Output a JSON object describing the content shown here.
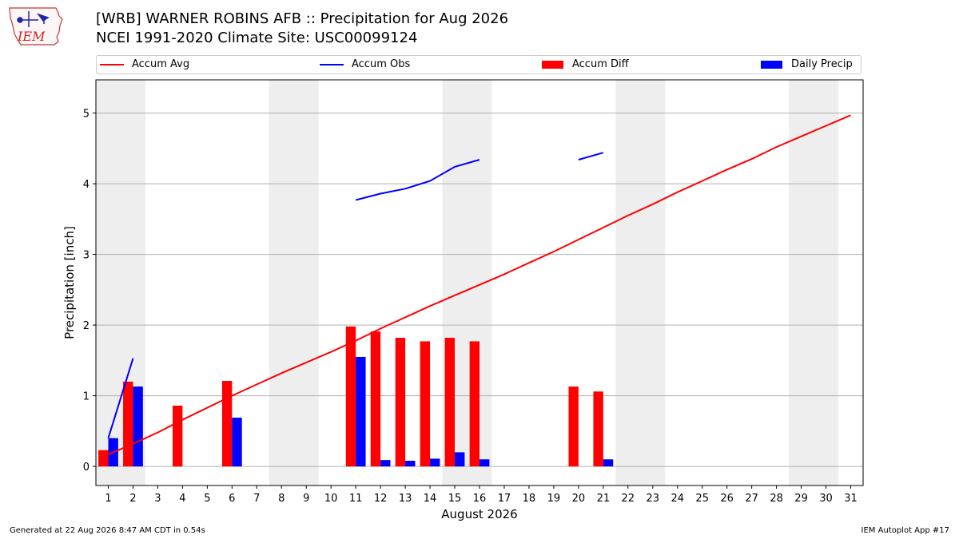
{
  "logo": {
    "text": "IEM"
  },
  "header": {
    "title": "[WRB] WARNER ROBINS AFB :: Precipitation for Aug 2026",
    "subtitle": "NCEI 1991-2020 Climate Site: USC00099124"
  },
  "footer": {
    "left": "Generated at 22 Aug 2026 8:47 AM CDT in 0.54s",
    "right": "IEM Autoplot App #17"
  },
  "colors": {
    "avg": "#ff0000",
    "obs": "#0000ff",
    "diff": "#ff0000",
    "daily": "#0000ff",
    "weekend": "#eeeeee",
    "grid": "#b0b0b0"
  },
  "chart_data": {
    "type": "bar",
    "xlabel": "August 2026",
    "ylabel": "Precipitation [inch]",
    "xlim": [
      0.5,
      31.5
    ],
    "ylim": [
      -0.27,
      5.47
    ],
    "x_ticks": [
      1,
      2,
      3,
      4,
      5,
      6,
      7,
      8,
      9,
      10,
      11,
      12,
      13,
      14,
      15,
      16,
      17,
      18,
      19,
      20,
      21,
      22,
      23,
      24,
      25,
      26,
      27,
      28,
      29,
      30,
      31
    ],
    "x_tick_labels": [
      "1",
      "2",
      "3",
      "4",
      "5",
      "6",
      "7",
      "8",
      "9",
      "10",
      "11",
      "12",
      "13",
      "14",
      "15",
      "16",
      "17",
      "18",
      "19",
      "20",
      "21",
      "22",
      "23",
      "24",
      "25",
      "26",
      "27",
      "28",
      "29",
      "30",
      "31"
    ],
    "y_ticks": [
      0,
      1,
      2,
      3,
      4,
      5
    ],
    "y_tick_labels": [
      "0",
      "1",
      "2",
      "3",
      "4",
      "5"
    ],
    "grid": "horizontal",
    "legend_position": "top",
    "weekend_shading": [
      [
        0.5,
        2.5
      ],
      [
        7.5,
        9.5
      ],
      [
        14.5,
        16.5
      ],
      [
        21.5,
        23.5
      ],
      [
        28.5,
        30.5
      ]
    ],
    "series": [
      {
        "name": "Accum Avg",
        "kind": "line",
        "x": [
          1,
          2,
          3,
          4,
          5,
          6,
          7,
          8,
          9,
          10,
          11,
          12,
          13,
          14,
          15,
          16,
          17,
          18,
          19,
          20,
          21,
          22,
          23,
          24,
          25,
          26,
          27,
          28,
          29,
          30,
          31
        ],
        "values": [
          0.17,
          0.32,
          0.48,
          0.66,
          0.83,
          1.0,
          1.16,
          1.32,
          1.47,
          1.62,
          1.78,
          1.95,
          2.11,
          2.27,
          2.42,
          2.57,
          2.72,
          2.88,
          3.04,
          3.21,
          3.38,
          3.55,
          3.71,
          3.88,
          4.04,
          4.2,
          4.35,
          4.52,
          4.67,
          4.82,
          4.97
        ]
      },
      {
        "name": "Accum Obs",
        "kind": "line",
        "x": [
          1,
          2,
          3,
          4,
          5,
          6,
          7,
          8,
          9,
          10,
          11,
          12,
          13,
          14,
          15,
          16,
          17,
          18,
          19,
          20,
          21,
          22,
          23,
          24,
          25,
          26,
          27,
          28,
          29,
          30,
          31
        ],
        "values": [
          0.4,
          1.53,
          null,
          null,
          null,
          null,
          null,
          null,
          null,
          null,
          3.77,
          3.86,
          3.93,
          4.04,
          4.24,
          4.34,
          null,
          null,
          null,
          4.34,
          4.44,
          null,
          null,
          null,
          null,
          null,
          null,
          null,
          null,
          null,
          null
        ]
      },
      {
        "name": "Accum Diff",
        "kind": "bar",
        "offset": -0.2,
        "x": [
          1,
          2,
          4,
          6,
          11,
          12,
          13,
          14,
          15,
          16,
          20,
          21
        ],
        "values": [
          0.23,
          1.2,
          0.86,
          1.21,
          1.98,
          1.91,
          1.82,
          1.77,
          1.82,
          1.77,
          1.13,
          1.06
        ]
      },
      {
        "name": "Daily Precip",
        "kind": "bar",
        "offset": 0.2,
        "x": [
          1,
          2,
          6,
          11,
          12,
          13,
          14,
          15,
          16,
          21
        ],
        "values": [
          0.4,
          1.13,
          0.69,
          1.55,
          0.09,
          0.08,
          0.11,
          0.2,
          0.1,
          0.1
        ]
      }
    ]
  }
}
